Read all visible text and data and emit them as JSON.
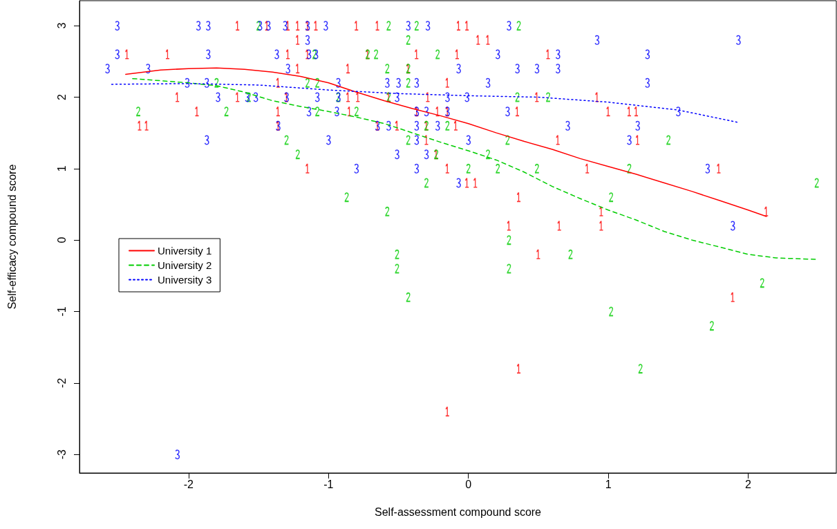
{
  "chart_data": {
    "type": "scatter",
    "xlabel": "Self-assessment compound score",
    "ylabel": "Self-efficacy compound score",
    "xlim": [
      -2.78,
      2.63
    ],
    "ylim": [
      -3.26,
      3.35
    ],
    "xticks": [
      -2,
      -1,
      0,
      1,
      2
    ],
    "yticks": [
      -3,
      -2,
      -1,
      0,
      1,
      2,
      3
    ],
    "legend": "left",
    "series": [
      {
        "color": "#ff0000",
        "x": [
          -1.65,
          -1.44,
          -1.29,
          -1.22,
          -1.15,
          -1.09,
          -0.8,
          -0.65,
          -0.07,
          -0.01,
          -1.22,
          0.07,
          0.14,
          -2.44,
          -2.15,
          -1.29,
          -1.15,
          -0.72,
          -0.37,
          -0.08,
          0.57,
          -1.22,
          -0.86,
          -0.43,
          -1.36,
          -0.15,
          -2.08,
          -1.65,
          -1.3,
          -0.86,
          -0.79,
          -0.57,
          -0.29,
          0.49,
          0.92,
          -1.94,
          -1.36,
          -0.85,
          -0.37,
          -0.22,
          -0.15,
          0.35,
          1.0,
          1.15,
          1.2,
          -2.35,
          -2.3,
          -1.36,
          -0.65,
          -0.51,
          -0.3,
          -0.09,
          -0.3,
          0.64,
          1.21,
          -0.23,
          -1.15,
          -0.15,
          0.85,
          1.79,
          -0.01,
          0.05,
          0.36,
          0.95,
          2.13,
          0.29,
          0.65,
          0.95,
          0.5,
          1.89,
          0.36,
          -0.15
        ],
        "values": [
          3,
          3,
          3,
          3,
          3,
          3,
          3,
          3,
          3,
          3,
          2.8,
          2.8,
          2.8,
          2.6,
          2.6,
          2.6,
          2.6,
          2.6,
          2.6,
          2.6,
          2.6,
          2.4,
          2.4,
          2.4,
          2.2,
          2.2,
          2,
          2,
          2,
          2,
          2,
          2,
          2,
          2,
          2,
          1.8,
          1.8,
          1.8,
          1.8,
          1.8,
          1.8,
          1.8,
          1.8,
          1.8,
          1.8,
          1.6,
          1.6,
          1.6,
          1.6,
          1.6,
          1.6,
          1.6,
          1.4,
          1.4,
          1.4,
          1.2,
          1,
          1,
          1,
          1,
          0.8,
          0.8,
          0.6,
          0.4,
          0.4,
          0.2,
          0.2,
          0.2,
          -0.2,
          -0.8,
          -1.8,
          -2.4
        ]
      },
      {
        "color": "#00cd00",
        "x": [
          -1.5,
          -0.57,
          -0.37,
          0.36,
          -0.43,
          -1.1,
          -0.72,
          -0.66,
          -0.22,
          -0.58,
          -0.43,
          -1.8,
          -1.15,
          -1.08,
          -0.43,
          -1.57,
          -0.93,
          -0.57,
          0.35,
          0.57,
          -2.36,
          -1.73,
          -1.08,
          -0.8,
          -0.3,
          -0.15,
          -1.3,
          -0.43,
          0.28,
          1.43,
          -1.22,
          -0.23,
          0.14,
          0,
          0.21,
          0.49,
          1.15,
          -0.3,
          2.49,
          -0.87,
          1.02,
          -0.58,
          0.29,
          -0.51,
          0.73,
          -0.51,
          0.29,
          2.1,
          -0.43,
          1.02,
          1.74,
          1.23
        ],
        "values": [
          3,
          3,
          3,
          3,
          2.8,
          2.6,
          2.6,
          2.6,
          2.6,
          2.4,
          2.4,
          2.2,
          2.2,
          2.2,
          2.2,
          2,
          2,
          2,
          2,
          2,
          1.8,
          1.8,
          1.8,
          1.8,
          1.6,
          1.6,
          1.4,
          1.4,
          1.4,
          1.4,
          1.2,
          1.2,
          1.2,
          1,
          1,
          1,
          1,
          0.8,
          0.8,
          0.6,
          0.6,
          0.4,
          0,
          -0.2,
          -0.2,
          -0.4,
          -0.4,
          -0.6,
          -0.8,
          -1,
          -1.2,
          -1.8
        ]
      },
      {
        "color": "#0000ff",
        "x": [
          -2.51,
          -1.93,
          -1.86,
          -1.49,
          -1.43,
          -1.31,
          -1.15,
          -1.02,
          -0.43,
          -0.29,
          0.29,
          -1.15,
          0.92,
          1.93,
          -2.51,
          -1.86,
          -1.37,
          -1.14,
          -1.09,
          0.21,
          0.64,
          1.28,
          -2.58,
          -2.29,
          -1.29,
          -0.07,
          0.35,
          0.49,
          0.64,
          -2.01,
          -1.87,
          -0.93,
          -0.58,
          -0.5,
          -0.37,
          0.14,
          1.28,
          -1.79,
          -1.58,
          -1.52,
          -1.3,
          -1.08,
          -0.93,
          -0.51,
          -0.15,
          -0.01,
          -1.14,
          -0.94,
          -0.37,
          -0.3,
          -0.15,
          0.28,
          1.5,
          -1.36,
          -0.65,
          -0.57,
          -0.37,
          -0.22,
          0.71,
          1.21,
          -1.87,
          -1,
          -0.37,
          0,
          1.15,
          -0.51,
          -0.3,
          -0.8,
          -0.37,
          1.71,
          -0.07,
          1.89,
          -2.08
        ],
        "values": [
          3,
          3,
          3,
          3,
          3,
          3,
          3,
          3,
          3,
          3,
          3,
          2.8,
          2.8,
          2.8,
          2.6,
          2.6,
          2.6,
          2.6,
          2.6,
          2.6,
          2.6,
          2.6,
          2.4,
          2.4,
          2.4,
          2.4,
          2.4,
          2.4,
          2.4,
          2.2,
          2.2,
          2.2,
          2.2,
          2.2,
          2.2,
          2.2,
          2.2,
          2,
          2,
          2,
          2,
          2,
          2,
          2,
          2,
          2,
          1.8,
          1.8,
          1.8,
          1.8,
          1.8,
          1.8,
          1.8,
          1.6,
          1.6,
          1.6,
          1.6,
          1.6,
          1.6,
          1.6,
          1.4,
          1.4,
          1.4,
          1.4,
          1.4,
          1.2,
          1.2,
          1,
          1,
          1,
          0.8,
          0.2,
          -3
        ]
      },
      {
        "type": "line",
        "name": "University 1",
        "color": "#ff0000",
        "line_style": "solid",
        "x": [
          -2.45,
          -2.2,
          -2,
          -1.8,
          -1.6,
          -1.4,
          -1.2,
          -1,
          -0.8,
          -0.6,
          -0.4,
          -0.2,
          0,
          0.2,
          0.4,
          0.6,
          0.8,
          1,
          1.2,
          1.4,
          1.6,
          1.8,
          2,
          2.13
        ],
        "values": [
          2.32,
          2.38,
          2.4,
          2.41,
          2.39,
          2.35,
          2.29,
          2.2,
          2.07,
          1.95,
          1.84,
          1.74,
          1.63,
          1.5,
          1.38,
          1.27,
          1.14,
          1.03,
          0.92,
          0.8,
          0.68,
          0.55,
          0.42,
          0.33
        ]
      },
      {
        "type": "line",
        "name": "University 2",
        "color": "#00cd00",
        "line_style": "dashed",
        "x": [
          -2.4,
          -2,
          -1.8,
          -1.6,
          -1.4,
          -1.2,
          -1,
          -0.8,
          -0.6,
          -0.4,
          -0.2,
          0,
          0.2,
          0.4,
          0.6,
          0.8,
          1,
          1.2,
          1.4,
          1.6,
          1.8,
          2,
          2.2,
          2.48
        ],
        "values": [
          2.26,
          2.2,
          2.16,
          2.07,
          1.95,
          1.87,
          1.8,
          1.72,
          1.63,
          1.5,
          1.37,
          1.25,
          1.12,
          0.95,
          0.75,
          0.58,
          0.42,
          0.28,
          0.12,
          0,
          -0.1,
          -0.2,
          -0.25,
          -0.27
        ]
      },
      {
        "type": "line",
        "name": "University 3",
        "color": "#0000ff",
        "line_style": "dotted",
        "x": [
          -2.55,
          -2,
          -1.5,
          -1,
          -0.5,
          0,
          0.5,
          1,
          1.5,
          1.92
        ],
        "values": [
          2.18,
          2.19,
          2.17,
          2.1,
          2.05,
          2.02,
          2,
          1.93,
          1.82,
          1.65
        ]
      }
    ]
  }
}
